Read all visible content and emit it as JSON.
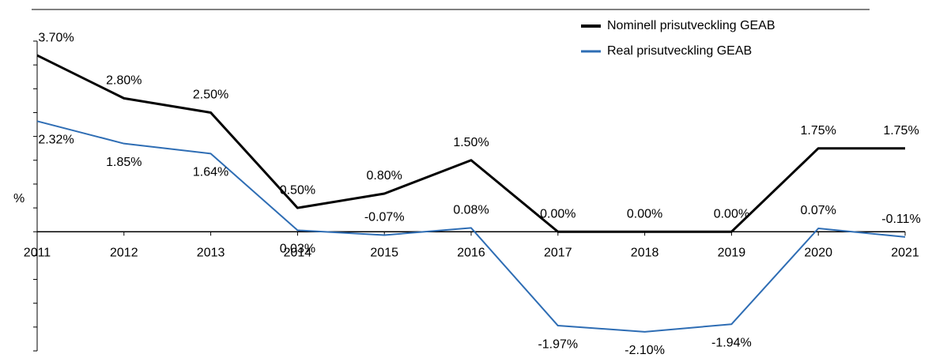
{
  "chart_data": {
    "type": "line",
    "y_label": "%",
    "categories": [
      "2011",
      "2012",
      "2013",
      "2014",
      "2015",
      "2016",
      "2017",
      "2018",
      "2019",
      "2020",
      "2021"
    ],
    "series": [
      {
        "name": "Nominell prisutveckling GEAB",
        "color": "#000000",
        "values": [
          3.7,
          2.8,
          2.5,
          0.5,
          0.8,
          1.5,
          0,
          0,
          0,
          1.75,
          1.75
        ],
        "value_labels": [
          "3.70%",
          "2.80%",
          "2.50%",
          "0.50%",
          "0.80%",
          "1.50%",
          "0.00%",
          "0.00%",
          "0.00%",
          "1.75%",
          "1.75%"
        ]
      },
      {
        "name": "Real prisutveckling GEAB",
        "color": "#2e6db4",
        "values": [
          2.32,
          1.85,
          1.64,
          0.03,
          -0.07,
          0.08,
          -1.97,
          -2.1,
          -1.94,
          0.07,
          -0.11
        ],
        "value_labels": [
          "2.32%",
          "1.85%",
          "1.64%",
          "0.03%",
          "-0.07%",
          "0.08%",
          "-1.97%",
          "-2.10%",
          "-1.94%",
          "0.07%",
          "-0.11%"
        ]
      }
    ],
    "ylim": [
      -2.5,
      4
    ],
    "yticks": [
      -2.5,
      -2,
      -1.5,
      -1,
      -0.5,
      0,
      0.5,
      1,
      1.5,
      2,
      2.5,
      3,
      3.5,
      4
    ],
    "legend": "top-right"
  }
}
